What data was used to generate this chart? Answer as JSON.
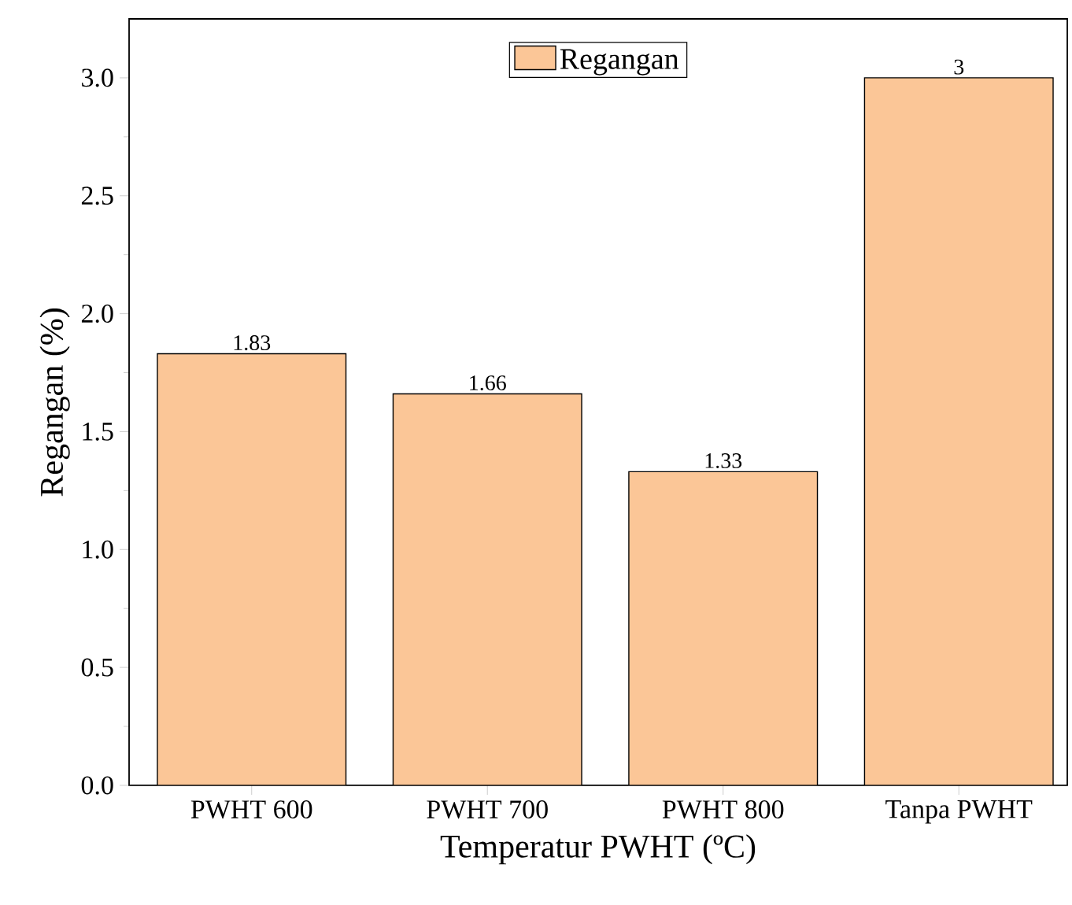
{
  "chart_data": {
    "type": "bar",
    "xlabel": "Temperatur PWHT (ºC)",
    "ylabel": "Regangan (%)",
    "categories": [
      "PWHT 600",
      "PWHT 700",
      "PWHT 800",
      "Tanpa PWHT"
    ],
    "series": [
      {
        "name": "Regangan",
        "color": "#fbc697",
        "values": [
          1.83,
          1.66,
          1.33,
          3
        ]
      }
    ],
    "ylim": [
      0,
      3.25
    ],
    "yticks": [
      {
        "value": 0,
        "label": "0.0"
      },
      {
        "value": 0.5,
        "label": "0.5"
      },
      {
        "value": 1,
        "label": "1.0"
      },
      {
        "value": 1.5,
        "label": "1.5"
      },
      {
        "value": 2,
        "label": "2.0"
      },
      {
        "value": 2.5,
        "label": "2.5"
      },
      {
        "value": 3,
        "label": "3.0"
      }
    ],
    "data_labels": true,
    "legend": "top"
  }
}
